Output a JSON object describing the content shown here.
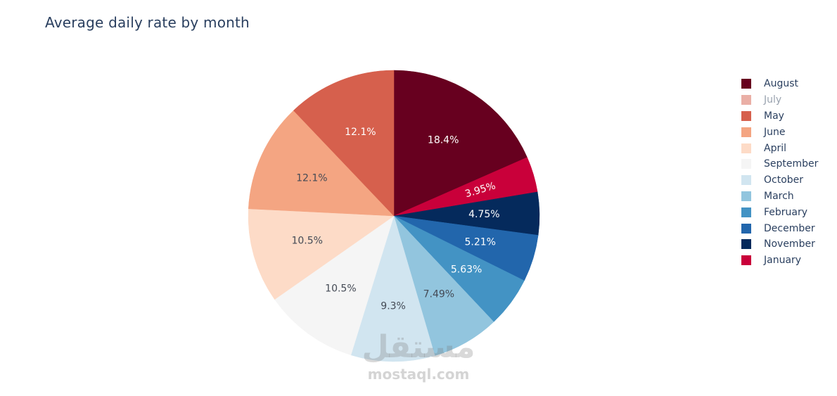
{
  "chart_data": {
    "type": "pie",
    "title": "Average daily rate by month",
    "slices": [
      {
        "label": "August",
        "value": 18.4,
        "text": "18.4%",
        "color": "#67001f"
      },
      {
        "label": "January",
        "value": 3.95,
        "text": "3.95%",
        "color": "#c9003a"
      },
      {
        "label": "November",
        "value": 4.75,
        "text": "4.75%",
        "color": "#052a5c"
      },
      {
        "label": "December",
        "value": 5.21,
        "text": "5.21%",
        "color": "#2266ac"
      },
      {
        "label": "February",
        "value": 5.63,
        "text": "5.63%",
        "color": "#4393c4"
      },
      {
        "label": "March",
        "value": 7.49,
        "text": "7.49%",
        "color": "#92c5de"
      },
      {
        "label": "October",
        "value": 9.3,
        "text": "9.3%",
        "color": "#d1e5f0"
      },
      {
        "label": "September",
        "value": 10.5,
        "text": "10.5%",
        "color": "#f5f5f5"
      },
      {
        "label": "April",
        "value": 10.5,
        "text": "10.5%",
        "color": "#fddbc7"
      },
      {
        "label": "June",
        "value": 12.1,
        "text": "12.1%",
        "color": "#f4a582"
      },
      {
        "label": "May",
        "value": 12.1,
        "text": "12.1%",
        "color": "#d6604d"
      }
    ],
    "legend": {
      "placement": "right",
      "items": [
        {
          "label": "August",
          "color": "#67001f",
          "visible": true
        },
        {
          "label": "July",
          "color": "#d6604d",
          "visible": false
        },
        {
          "label": "May",
          "color": "#d6604d",
          "visible": true
        },
        {
          "label": "June",
          "color": "#f4a582",
          "visible": true
        },
        {
          "label": "April",
          "color": "#fddbc7",
          "visible": true
        },
        {
          "label": "September",
          "color": "#f5f5f5",
          "visible": true
        },
        {
          "label": "October",
          "color": "#d1e5f0",
          "visible": true
        },
        {
          "label": "March",
          "color": "#92c5de",
          "visible": true
        },
        {
          "label": "February",
          "color": "#4393c4",
          "visible": true
        },
        {
          "label": "December",
          "color": "#2266ac",
          "visible": true
        },
        {
          "label": "November",
          "color": "#052a5c",
          "visible": true
        },
        {
          "label": "January",
          "color": "#c9003a",
          "visible": true
        }
      ]
    }
  },
  "watermark": {
    "logo": "مستقل",
    "text": "mostaql.com"
  }
}
